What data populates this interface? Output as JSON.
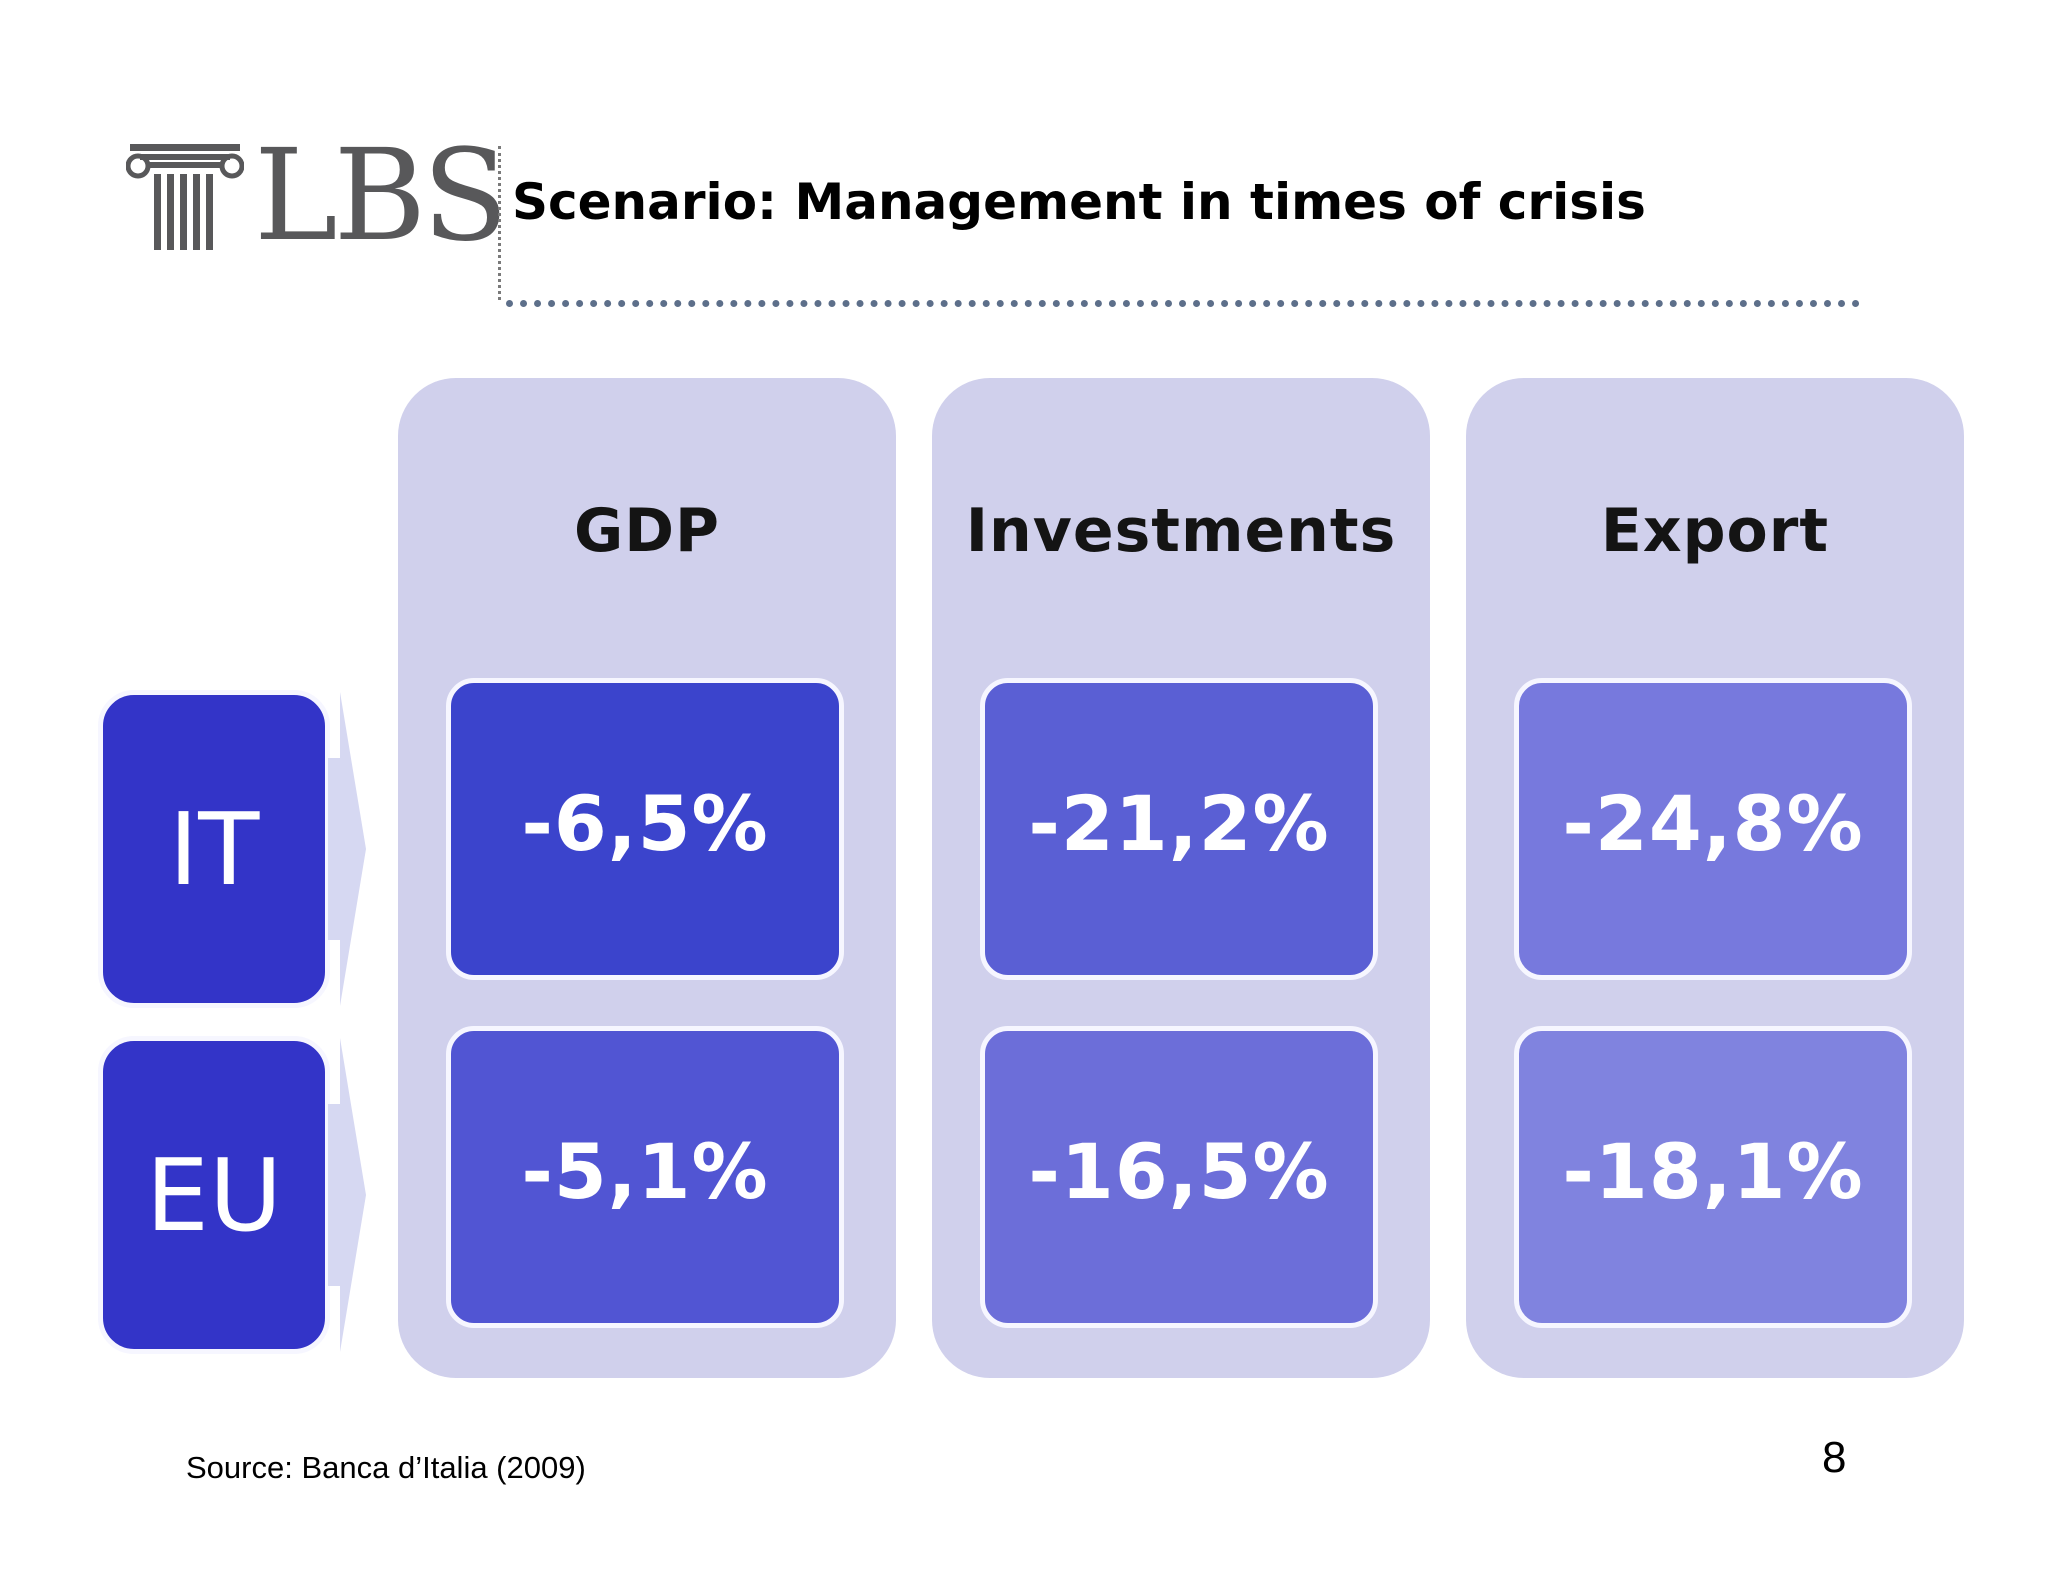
{
  "header": {
    "logo_text": "LBS",
    "title": "Scenario: Management in times of crisis"
  },
  "table": {
    "columns": [
      {
        "label": "GDP"
      },
      {
        "label": "Investments"
      },
      {
        "label": "Export"
      }
    ],
    "rows": [
      {
        "label": "IT",
        "values": [
          "-6,5%",
          "-21,2%",
          "-24,8%"
        ]
      },
      {
        "label": "EU",
        "values": [
          "-5,1%",
          "-16,5%",
          "-18,1%"
        ]
      }
    ]
  },
  "colors": {
    "column_background": "#d0d0ec",
    "row_label_background": "#3334c8",
    "cell_it_gdp": "#3b44cc",
    "cell_it_investments": "#5a5fd4",
    "cell_it_export": "#7779dd",
    "cell_eu_gdp": "#5155d3",
    "cell_eu_investments": "#6c6ed9",
    "cell_eu_export": "#8083df",
    "divider": "#5d6f8a",
    "logo": "#58585a"
  },
  "icons": {
    "logo_mark": "ionic-column-icon",
    "row_pointer": "chevron-arrow-icon"
  },
  "footer": {
    "source": "Source: Banca d’Italia (2009)",
    "page_number": "8"
  }
}
